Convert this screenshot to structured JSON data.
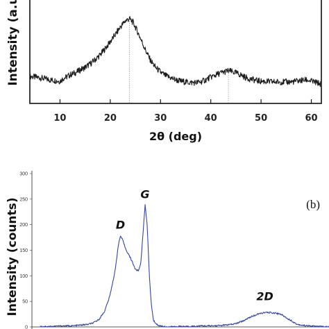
{
  "chart_data": [
    {
      "type": "line",
      "title": "",
      "xlabel": "2θ (deg)",
      "ylabel": "Intensity (a.u.)",
      "xlim": [
        4,
        62
      ],
      "xticks": [
        10,
        20,
        30,
        40,
        50,
        60
      ],
      "grid": false,
      "colors": {
        "series": "#1a1a1a",
        "marker": "#9a9a9a"
      },
      "reference_lines_x": [
        23.8,
        43.5
      ],
      "series": [
        {
          "x": [
            4,
            6,
            8,
            10,
            10.8,
            11,
            12,
            13,
            14,
            15,
            16,
            17,
            18,
            19,
            20,
            21,
            22,
            23,
            23.8,
            24.5,
            25,
            26,
            27,
            28,
            29,
            30,
            31,
            32,
            33,
            34,
            35,
            36,
            37,
            38,
            39,
            40,
            41,
            42,
            43,
            43.5,
            44,
            45,
            46,
            47,
            48,
            49,
            50,
            52,
            54,
            56,
            58,
            59,
            60,
            61,
            62
          ],
          "y": [
            0.22,
            0.2,
            0.17,
            0.15,
            0.2,
            0.2,
            0.24,
            0.27,
            0.31,
            0.35,
            0.4,
            0.46,
            0.53,
            0.62,
            0.72,
            0.82,
            0.93,
            1.02,
            1.05,
            1.0,
            0.93,
            0.77,
            0.6,
            0.45,
            0.35,
            0.28,
            0.23,
            0.2,
            0.17,
            0.15,
            0.14,
            0.13,
            0.13,
            0.14,
            0.17,
            0.21,
            0.24,
            0.27,
            0.29,
            0.3,
            0.29,
            0.27,
            0.24,
            0.2,
            0.18,
            0.16,
            0.15,
            0.14,
            0.14,
            0.14,
            0.16,
            0.17,
            0.15,
            0.13,
            0.11
          ]
        }
      ]
    },
    {
      "type": "line",
      "title": "",
      "xlabel": "",
      "ylabel": "Intensity (counts)",
      "panel_label": "(b)",
      "ylim": [
        0,
        300
      ],
      "yticks": [
        0,
        50,
        100,
        150,
        200,
        250,
        300
      ],
      "grid": false,
      "colors": {
        "series": "#3344a8"
      },
      "annotations": [
        {
          "text": "D",
          "x": 1350,
          "y": 192
        },
        {
          "text": "G",
          "x": 1580,
          "y": 252
        },
        {
          "text": "2D",
          "x": 2700,
          "y": 52
        }
      ],
      "series": [
        {
          "x": [
            600,
            700,
            800,
            900,
            950,
            1000,
            1050,
            1100,
            1150,
            1200,
            1250,
            1300,
            1330,
            1350,
            1370,
            1400,
            1430,
            1460,
            1490,
            1520,
            1540,
            1560,
            1580,
            1600,
            1620,
            1640,
            1660,
            1700,
            1750,
            1800,
            1900,
            2000,
            2100,
            2200,
            2300,
            2400,
            2450,
            2500,
            2550,
            2600,
            2650,
            2700,
            2750,
            2800,
            2850,
            2900,
            2950,
            3000,
            3100,
            3200,
            3300
          ],
          "y": [
            1,
            1,
            2,
            2,
            3,
            4,
            5,
            8,
            15,
            30,
            60,
            110,
            160,
            178,
            170,
            152,
            140,
            128,
            112,
            110,
            125,
            180,
            240,
            200,
            100,
            40,
            12,
            3,
            1,
            0,
            1,
            1,
            2,
            2,
            3,
            5,
            8,
            12,
            18,
            22,
            26,
            28,
            28,
            27,
            25,
            18,
            12,
            5,
            2,
            1,
            0
          ]
        }
      ]
    }
  ]
}
